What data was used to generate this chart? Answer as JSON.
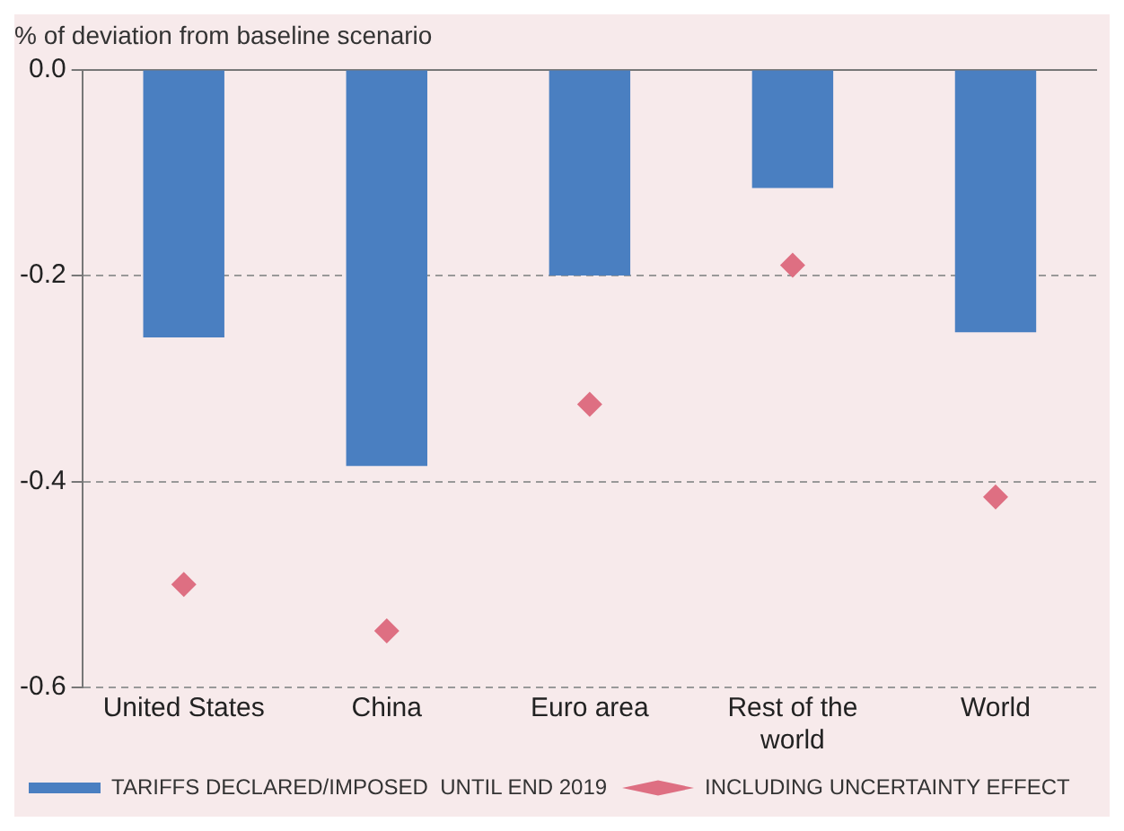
{
  "chart_data": {
    "type": "bar",
    "ylabel": "% of deviation from baseline scenario",
    "categories": [
      "United States",
      "China",
      "Euro area",
      "Rest of the world",
      "World"
    ],
    "series": [
      {
        "name": "TARIFFS DECLARED/IMPOSED  UNTIL END 2019",
        "color": "#4a7fc1",
        "values": [
          -0.26,
          -0.385,
          -0.2,
          -0.115,
          -0.255
        ]
      },
      {
        "name": "INCLUDING UNCERTAINTY EFFECT",
        "type": "scatter",
        "color": "#de6f82",
        "x": [
          "United States",
          "China",
          "Euro area",
          "Rest of the world",
          "World"
        ],
        "values": [
          -0.5,
          -0.545,
          -0.325,
          -0.19,
          -0.415
        ]
      }
    ],
    "ylim": [
      -0.6,
      0
    ],
    "yticks": [
      {
        "value": -0.6,
        "label": "-0.6"
      },
      {
        "value": -0.4,
        "label": "-0.4"
      },
      {
        "value": -0.2,
        "label": "-0.2"
      },
      {
        "value": 0,
        "label": "0.0"
      }
    ],
    "grid": "y",
    "legend": "bottom left",
    "marker": "diamond"
  }
}
